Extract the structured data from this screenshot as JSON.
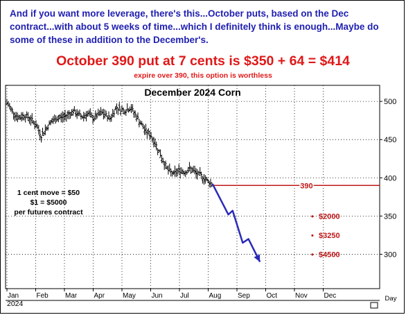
{
  "header": {
    "intro_text": "And if you want more leverage, there's this...October puts, based on the Dec contract...with about 5 weeks of time...which I definitely think is enough...Maybe do some of these in addition to the December's.",
    "headline": "October 390 put at 7 cents is $350 + 64 = $414",
    "subline": "expire over 390, this option is worthless"
  },
  "colors": {
    "header_text": "#1f1fb0",
    "headline_red": "#e01818",
    "price_bars": "#000000",
    "strike_line": "#c01818",
    "projection": "#2a2ab8"
  },
  "chart_data": {
    "type": "bar",
    "subtype": "ohlc-price-chart",
    "title": "December 2024 Corn",
    "x_label": "Day",
    "year_label": "2024",
    "months": [
      "Jan",
      "Feb",
      "Mar",
      "Apr",
      "May",
      "Jun",
      "Jul",
      "Aug",
      "Sep",
      "Oct",
      "Nov",
      "Dec"
    ],
    "y_ticks": [
      500,
      450,
      400,
      350,
      300
    ],
    "ylim": [
      255,
      521
    ],
    "grid": true,
    "y_axis_side": "right",
    "price_series": {
      "month_index": [
        0.0,
        0.2,
        0.4,
        0.6,
        0.8,
        1.0,
        1.2,
        1.5,
        1.75,
        2.0,
        2.3,
        2.6,
        2.8,
        3.0,
        3.3,
        3.6,
        3.8,
        4.1,
        4.3,
        4.6,
        4.8,
        5.0,
        5.2,
        5.4,
        5.6,
        5.8,
        6.0,
        6.2,
        6.4,
        6.6,
        6.8,
        7.0,
        7.15
      ],
      "close": [
        498,
        487,
        478,
        482,
        478,
        470,
        455,
        472,
        478,
        480,
        487,
        480,
        484,
        478,
        485,
        478,
        492,
        488,
        492,
        475,
        462,
        456,
        442,
        425,
        410,
        405,
        410,
        408,
        412,
        405,
        402,
        395,
        392
      ]
    },
    "strike": {
      "value": 390,
      "label": "390"
    },
    "projection": {
      "month_index": [
        7.15,
        7.7,
        7.85,
        8.2,
        8.4,
        8.8
      ],
      "price": [
        392,
        352,
        357,
        315,
        320,
        290
      ]
    },
    "annotations": [
      {
        "text": "1 cent move = $50",
        "position": "left"
      },
      {
        "text": "$1 = $5000",
        "position": "left"
      },
      {
        "text": "per futures contract",
        "position": "left"
      }
    ],
    "profit_labels": [
      {
        "label": "$2000",
        "price": 350
      },
      {
        "label": "$3250",
        "price": 325
      },
      {
        "label": "$4500",
        "price": 300
      }
    ]
  }
}
